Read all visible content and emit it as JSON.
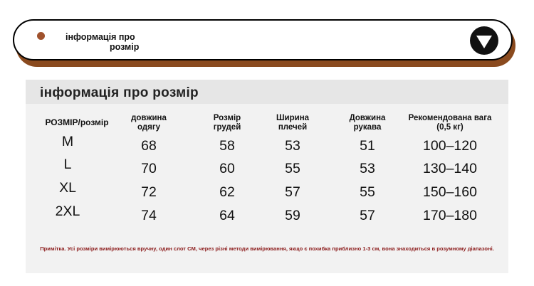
{
  "header": {
    "title_line1": "інформація про",
    "title_line2": "розмір"
  },
  "table": {
    "title": "інформація про розмір",
    "columns": [
      [
        "РОЗМІР/розмір"
      ],
      [
        "довжина",
        "одягу"
      ],
      [
        "Розмір",
        "грудей"
      ],
      [
        "Ширина",
        "плечей"
      ],
      [
        "Довжина",
        "рукава"
      ],
      [
        "Рекомендована вага",
        "(0,5 кг)"
      ]
    ],
    "rows": [
      [
        "M",
        "68",
        "58",
        "53",
        "51",
        "100–120"
      ],
      [
        "L",
        "70",
        "60",
        "55",
        "53",
        "130–140"
      ],
      [
        "XL",
        "72",
        "62",
        "57",
        "55",
        "150–160"
      ],
      [
        "2XL",
        "74",
        "64",
        "59",
        "57",
        "170–180"
      ]
    ],
    "note": "Примітка. Усі розміри вимірюються вручну, один слот СМ, через різні методи вимірювання, якщо є похибка приблизно 1-3 см, вона знаходиться в розумному діапазоні."
  }
}
